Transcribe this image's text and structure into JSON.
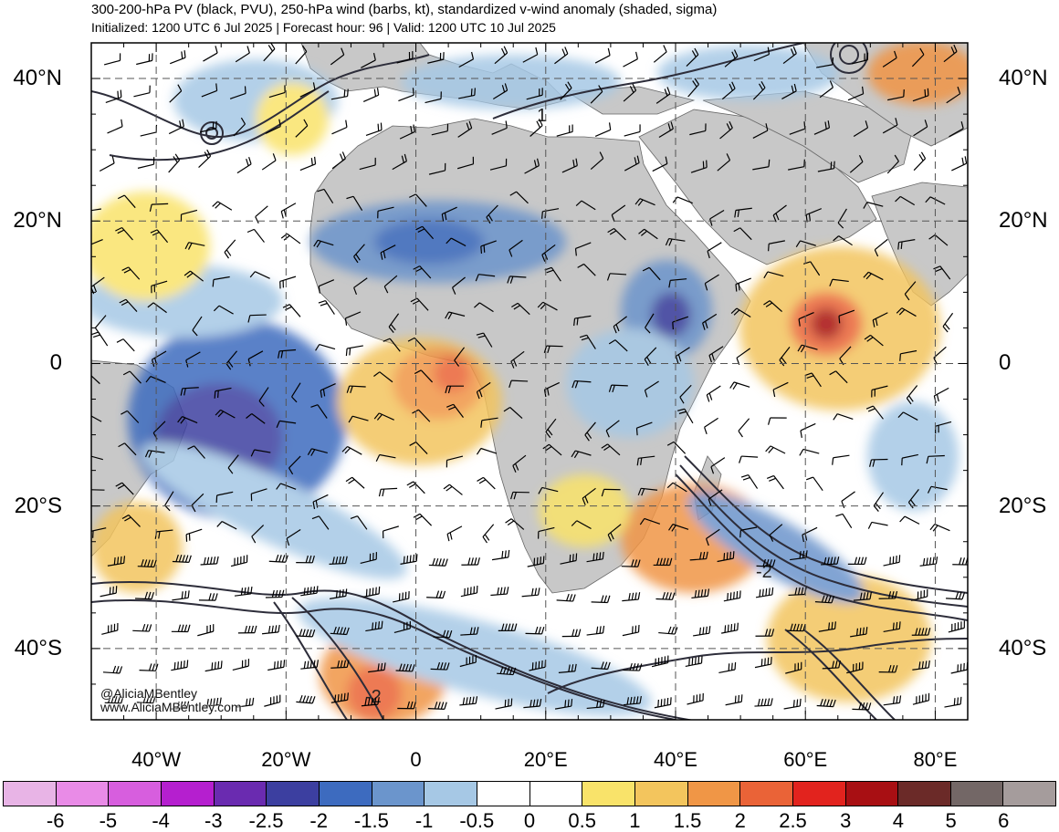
{
  "header": {
    "title": "300-200-hPa PV (black, PVU), 250-hPa wind (barbs, kt), standardized v-wind anomaly (shaded, sigma)",
    "subtitle": "Initialized: 1200 UTC 6 Jul 2025 | Forecast hour: 96 | Valid: 1200 UTC 10 Jul 2025"
  },
  "map": {
    "region": "Africa, Atlantic and western Indian Ocean",
    "lat_range": [
      -50,
      45
    ],
    "lon_range": [
      -50,
      85
    ],
    "lat_labels": [
      "40°N",
      "20°N",
      "0",
      "20°S",
      "40°S"
    ],
    "lat_values": [
      40,
      20,
      0,
      -20,
      -40
    ],
    "lon_labels": [
      "40°W",
      "20°W",
      "0",
      "20°E",
      "40°E",
      "60°E",
      "80°E"
    ],
    "lon_values": [
      -40,
      -20,
      0,
      20,
      40,
      60,
      80
    ],
    "gridlines": "dashed",
    "land_color": "#c8c8c8",
    "contour_labels": [
      "1",
      "-2",
      "-2"
    ]
  },
  "credit": {
    "handle": "@AliciaMBentley",
    "site": "www.AliciaMBentley.com"
  },
  "colorbar": {
    "colors": [
      "#e8b4e6",
      "#e98be7",
      "#d75ede",
      "#b51fcf",
      "#6a2bb0",
      "#3c3fa0",
      "#3d6bbf",
      "#6b95cc",
      "#a6c8e5",
      "#ffffff",
      "#ffffff",
      "#f9e36a",
      "#f3c55d",
      "#f09646",
      "#ea6337",
      "#e2231e",
      "#a80f13",
      "#6b2a28",
      "#736766",
      "#a59c9c"
    ],
    "ticks": [
      "-6",
      "-5",
      "-4",
      "-3",
      "-2.5",
      "-2",
      "-1.5",
      "-1",
      "-0.5",
      "0",
      "0.5",
      "1",
      "1.5",
      "2",
      "2.5",
      "3",
      "4",
      "5",
      "6"
    ]
  }
}
